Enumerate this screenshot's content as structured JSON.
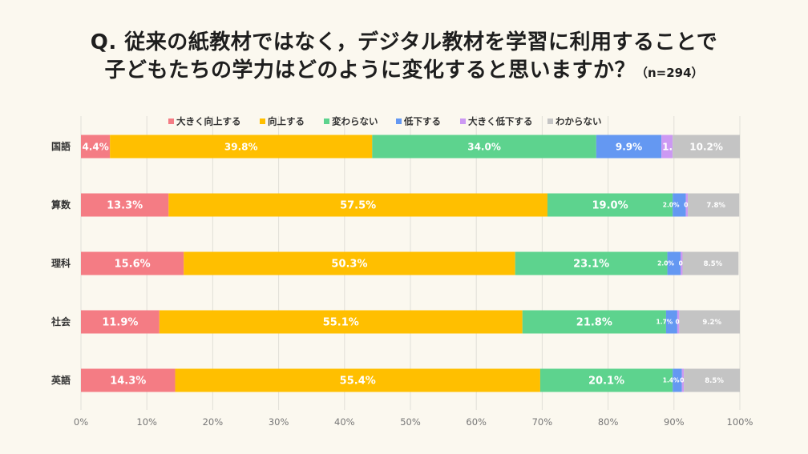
{
  "title": {
    "line1": "Q. 従来の紙教材ではなく，デジタル教材を学習に利用することで",
    "line2": "子どもたちの学力はどのように変化すると思いますか？",
    "note": "（n=294）"
  },
  "chart_data": {
    "type": "bar",
    "orientation": "horizontal",
    "stacked": true,
    "categories": [
      "国語",
      "算数",
      "理科",
      "社会",
      "英語"
    ],
    "series": [
      {
        "name": "大きく向上する",
        "color": "#F47C84",
        "values": [
          4.4,
          13.3,
          15.6,
          11.9,
          14.3
        ]
      },
      {
        "name": "向上する",
        "color": "#FFBF00",
        "values": [
          39.8,
          57.5,
          50.3,
          55.1,
          55.4
        ]
      },
      {
        "name": "変わらない",
        "color": "#5DD38E",
        "values": [
          34.0,
          19.0,
          23.1,
          21.8,
          20.1
        ]
      },
      {
        "name": "低下する",
        "color": "#6498F2",
        "values": [
          9.9,
          2.0,
          2.0,
          1.7,
          1.4
        ]
      },
      {
        "name": "大きく低下する",
        "color": "#CC99F3",
        "values": [
          1.7,
          0.3,
          0.3,
          0.3,
          0.3
        ]
      },
      {
        "name": "わからない",
        "color": "#C4C4C4",
        "values": [
          10.2,
          7.8,
          8.5,
          9.2,
          8.5
        ]
      }
    ],
    "xlim": [
      0,
      100
    ],
    "x_ticks": [
      "0%",
      "10%",
      "20%",
      "30%",
      "40%",
      "50%",
      "60%",
      "70%",
      "80%",
      "90%",
      "100%"
    ],
    "legend": "top",
    "grid": true
  }
}
